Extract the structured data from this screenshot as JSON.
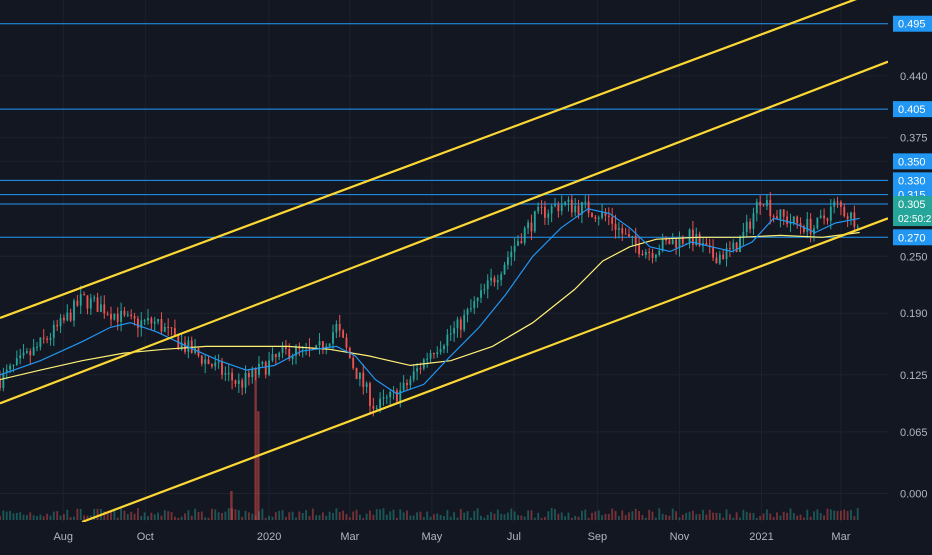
{
  "chart_data": {
    "type": "candlestick",
    "theme": {
      "background": "#131722",
      "grid": "#1e222d",
      "text": "#b2b5be",
      "up": "#26a69a",
      "down": "#ef5350",
      "hline": "#2196f3",
      "channel": "#fdd835",
      "ma_fast": "#2196f3",
      "ma_slow": "#fff176",
      "price_tag": "#26a69a",
      "level_tag": "#2196f3"
    },
    "y_ticks": [
      "0.495",
      "0.440",
      "0.405",
      "0.375",
      "0.350",
      "0.330",
      "0.315",
      "0.305",
      "0.270",
      "0.250",
      "0.190",
      "0.125",
      "0.065",
      "0.000"
    ],
    "y_tick_values": [
      0.495,
      0.44,
      0.405,
      0.375,
      0.35,
      0.33,
      0.315,
      0.305,
      0.27,
      0.25,
      0.19,
      0.125,
      0.065,
      0.0
    ],
    "ylim": [
      -0.03,
      0.52
    ],
    "x_ticks": [
      {
        "label": "Aug",
        "date": "2019-08-01"
      },
      {
        "label": "Oct",
        "date": "2019-10-01"
      },
      {
        "label": "2020",
        "date": "2020-01-01"
      },
      {
        "label": "Mar",
        "date": "2020-03-01"
      },
      {
        "label": "May",
        "date": "2020-05-01"
      },
      {
        "label": "Jul",
        "date": "2020-07-01"
      },
      {
        "label": "Sep",
        "date": "2020-09-01"
      },
      {
        "label": "Nov",
        "date": "2020-11-01"
      },
      {
        "label": "2021",
        "date": "2021-01-01"
      },
      {
        "label": "Mar",
        "date": "2021-03-01"
      }
    ],
    "xlim": [
      "2019-06-15",
      "2021-04-05"
    ],
    "horizontal_levels": [
      {
        "value": 0.495,
        "label": "0.495"
      },
      {
        "value": 0.405,
        "label": "0.405"
      },
      {
        "value": 0.33,
        "label": "0.330"
      },
      {
        "value": 0.315,
        "label": "0.315"
      },
      {
        "value": 0.305,
        "label": "0.305"
      },
      {
        "value": 0.27,
        "label": "0.270"
      }
    ],
    "level_tags": [
      {
        "value": 0.495,
        "label": "0.495"
      },
      {
        "value": 0.405,
        "label": "0.405"
      },
      {
        "value": 0.35,
        "label": "0.350"
      },
      {
        "value": 0.33,
        "label": "0.330"
      },
      {
        "value": 0.315,
        "label": "0.315"
      },
      {
        "value": 0.27,
        "label": "0.270"
      }
    ],
    "current_price": {
      "value": 0.305,
      "label": "0.305",
      "countdown": "02:50:2"
    },
    "channel_lines": [
      {
        "from": {
          "date": "2019-06-15",
          "value": 0.185
        },
        "to": {
          "date": "2021-03-20",
          "value": 0.525
        }
      },
      {
        "from": {
          "date": "2019-06-15",
          "value": 0.095
        },
        "to": {
          "date": "2021-04-05",
          "value": 0.455
        }
      },
      {
        "from": {
          "date": "2019-08-15",
          "value": -0.03
        },
        "to": {
          "date": "2021-04-05",
          "value": 0.29
        }
      }
    ],
    "ohlc_anchors": [
      [
        "2019-06-15",
        0.12
      ],
      [
        "2019-07-10",
        0.15
      ],
      [
        "2019-08-01",
        0.18
      ],
      [
        "2019-08-15",
        0.205
      ],
      [
        "2019-09-01",
        0.195
      ],
      [
        "2019-09-20",
        0.18
      ],
      [
        "2019-10-10",
        0.18
      ],
      [
        "2019-10-25",
        0.16
      ],
      [
        "2019-11-20",
        0.135
      ],
      [
        "2019-12-10",
        0.115
      ],
      [
        "2019-12-25",
        0.13
      ],
      [
        "2020-01-15",
        0.15
      ],
      [
        "2020-02-05",
        0.148
      ],
      [
        "2020-02-20",
        0.175
      ],
      [
        "2020-03-05",
        0.13
      ],
      [
        "2020-03-20",
        0.09
      ],
      [
        "2020-04-10",
        0.11
      ],
      [
        "2020-04-30",
        0.15
      ],
      [
        "2020-05-20",
        0.175
      ],
      [
        "2020-06-05",
        0.205
      ],
      [
        "2020-06-20",
        0.235
      ],
      [
        "2020-07-05",
        0.27
      ],
      [
        "2020-07-20",
        0.295
      ],
      [
        "2020-08-05",
        0.305
      ],
      [
        "2020-08-25",
        0.3
      ],
      [
        "2020-09-10",
        0.29
      ],
      [
        "2020-09-25",
        0.265
      ],
      [
        "2020-10-10",
        0.255
      ],
      [
        "2020-10-25",
        0.265
      ],
      [
        "2020-11-10",
        0.27
      ],
      [
        "2020-11-25",
        0.25
      ],
      [
        "2020-12-10",
        0.255
      ],
      [
        "2020-12-20",
        0.275
      ],
      [
        "2021-01-01",
        0.315
      ],
      [
        "2021-01-10",
        0.295
      ],
      [
        "2021-01-25",
        0.285
      ],
      [
        "2021-02-10",
        0.28
      ],
      [
        "2021-02-25",
        0.305
      ],
      [
        "2021-03-10",
        0.29
      ],
      [
        "2021-03-15",
        0.29
      ]
    ],
    "ma_fast": [
      [
        "2019-06-15",
        0.125
      ],
      [
        "2019-07-15",
        0.14
      ],
      [
        "2019-08-15",
        0.16
      ],
      [
        "2019-09-05",
        0.175
      ],
      [
        "2019-09-20",
        0.18
      ],
      [
        "2019-10-10",
        0.17
      ],
      [
        "2019-11-01",
        0.155
      ],
      [
        "2019-11-25",
        0.14
      ],
      [
        "2019-12-15",
        0.13
      ],
      [
        "2020-01-05",
        0.135
      ],
      [
        "2020-01-25",
        0.15
      ],
      [
        "2020-02-20",
        0.155
      ],
      [
        "2020-03-05",
        0.145
      ],
      [
        "2020-03-20",
        0.12
      ],
      [
        "2020-04-05",
        0.105
      ],
      [
        "2020-04-25",
        0.115
      ],
      [
        "2020-05-15",
        0.145
      ],
      [
        "2020-06-05",
        0.175
      ],
      [
        "2020-06-25",
        0.21
      ],
      [
        "2020-07-15",
        0.25
      ],
      [
        "2020-08-05",
        0.28
      ],
      [
        "2020-08-25",
        0.3
      ],
      [
        "2020-09-10",
        0.295
      ],
      [
        "2020-09-25",
        0.28
      ],
      [
        "2020-10-10",
        0.26
      ],
      [
        "2020-10-25",
        0.255
      ],
      [
        "2020-11-10",
        0.265
      ],
      [
        "2020-11-25",
        0.26
      ],
      [
        "2020-12-10",
        0.255
      ],
      [
        "2020-12-25",
        0.265
      ],
      [
        "2021-01-10",
        0.29
      ],
      [
        "2021-01-25",
        0.285
      ],
      [
        "2021-02-10",
        0.275
      ],
      [
        "2021-02-25",
        0.285
      ],
      [
        "2021-03-15",
        0.29
      ]
    ],
    "ma_slow": [
      [
        "2019-06-15",
        0.12
      ],
      [
        "2019-07-15",
        0.13
      ],
      [
        "2019-08-15",
        0.14
      ],
      [
        "2019-09-15",
        0.148
      ],
      [
        "2019-10-15",
        0.152
      ],
      [
        "2019-11-15",
        0.155
      ],
      [
        "2019-12-15",
        0.155
      ],
      [
        "2020-01-15",
        0.155
      ],
      [
        "2020-02-15",
        0.152
      ],
      [
        "2020-03-15",
        0.145
      ],
      [
        "2020-04-15",
        0.135
      ],
      [
        "2020-05-15",
        0.14
      ],
      [
        "2020-06-15",
        0.155
      ],
      [
        "2020-07-15",
        0.18
      ],
      [
        "2020-08-15",
        0.215
      ],
      [
        "2020-09-05",
        0.245
      ],
      [
        "2020-09-25",
        0.26
      ],
      [
        "2020-10-15",
        0.268
      ],
      [
        "2020-11-15",
        0.27
      ],
      [
        "2020-12-15",
        0.27
      ],
      [
        "2021-01-15",
        0.272
      ],
      [
        "2021-02-15",
        0.27
      ],
      [
        "2021-03-15",
        0.275
      ]
    ],
    "volume_spikes": [
      {
        "date": "2019-12-22",
        "value": 1.0
      },
      {
        "date": "2019-12-24",
        "value": 0.75
      },
      {
        "date": "2019-12-04",
        "value": 0.2
      }
    ]
  }
}
